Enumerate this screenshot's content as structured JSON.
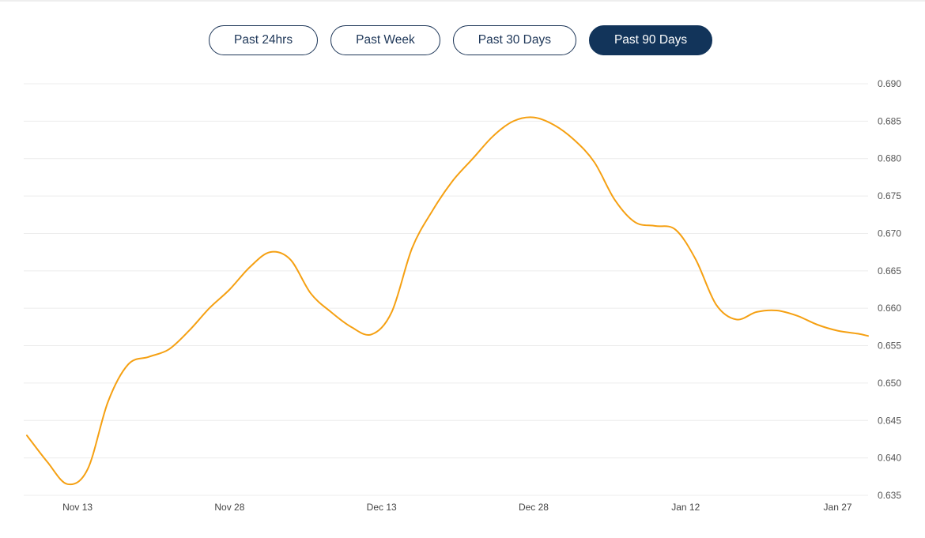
{
  "range_selector": {
    "options": [
      "Past 24hrs",
      "Past Week",
      "Past 30 Days",
      "Past 90 Days"
    ],
    "selected": "Past 90 Days"
  },
  "chart_data": {
    "type": "line",
    "title": "",
    "xlabel": "",
    "ylabel": "",
    "y_axis_position": "right",
    "grid": true,
    "legend": false,
    "line_color": "#f5a012",
    "ylim": [
      0.635,
      0.69
    ],
    "y_ticks": [
      "0.690",
      "0.685",
      "0.680",
      "0.675",
      "0.670",
      "0.665",
      "0.660",
      "0.655",
      "0.650",
      "0.645",
      "0.640",
      "0.635"
    ],
    "x_ticks": [
      "Nov 13",
      "Nov 28",
      "Dec 13",
      "Dec 28",
      "Jan 12",
      "Jan 27"
    ],
    "x_range": [
      "Nov 8",
      "Jan 30"
    ],
    "series": [
      {
        "x": [
          "Nov 8",
          "Nov 10",
          "Nov 12",
          "Nov 14",
          "Nov 16",
          "Nov 18",
          "Nov 20",
          "Nov 22",
          "Nov 24",
          "Nov 26",
          "Nov 28",
          "Nov 30",
          "Dec 2",
          "Dec 4",
          "Dec 6",
          "Dec 8",
          "Dec 10",
          "Dec 12",
          "Dec 14",
          "Dec 16",
          "Dec 18",
          "Dec 20",
          "Dec 22",
          "Dec 24",
          "Dec 26",
          "Dec 28",
          "Dec 30",
          "Jan 1",
          "Jan 3",
          "Jan 5",
          "Jan 7",
          "Jan 9",
          "Jan 11",
          "Jan 13",
          "Jan 15",
          "Jan 17",
          "Jan 19",
          "Jan 21",
          "Jan 23",
          "Jan 25",
          "Jan 27",
          "Jan 29",
          "Jan 30"
        ],
        "values": [
          0.643,
          0.6395,
          0.6365,
          0.6385,
          0.6475,
          0.6525,
          0.6535,
          0.6545,
          0.657,
          0.66,
          0.6625,
          0.6655,
          0.6675,
          0.6665,
          0.662,
          0.6595,
          0.6575,
          0.6565,
          0.6595,
          0.668,
          0.673,
          0.677,
          0.68,
          0.683,
          0.685,
          0.6855,
          0.6845,
          0.6825,
          0.6795,
          0.6745,
          0.6715,
          0.671,
          0.6705,
          0.6665,
          0.6605,
          0.6585,
          0.6595,
          0.6597,
          0.659,
          0.6578,
          0.657,
          0.6566,
          0.6563
        ]
      }
    ]
  }
}
